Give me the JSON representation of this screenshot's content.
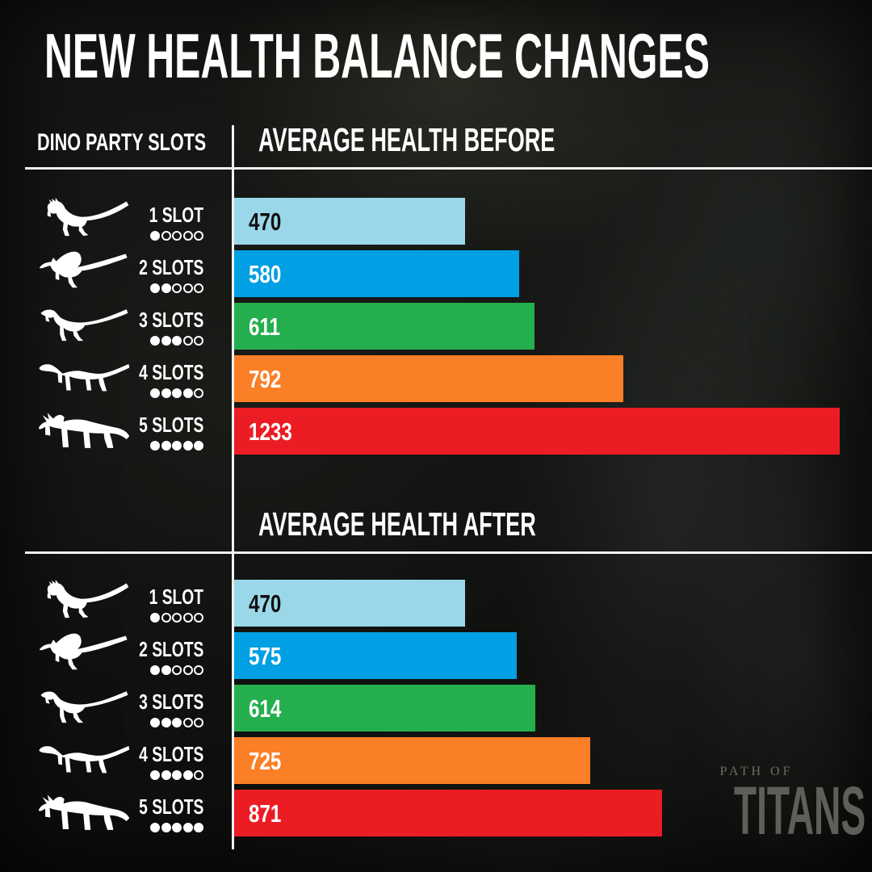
{
  "title": "NEW HEALTH BALANCE CHANGES",
  "headers": {
    "slots": "DINO PARTY SLOTS",
    "before": "AVERAGE HEALTH BEFORE",
    "after": "AVERAGE HEALTH AFTER"
  },
  "slots": [
    {
      "label": "1 SLOT",
      "filled_dots": 1,
      "total_dots": 5,
      "icon": "raptor-icon"
    },
    {
      "label": "2 SLOTS",
      "filled_dots": 2,
      "total_dots": 5,
      "icon": "concavenator-icon"
    },
    {
      "label": "3 SLOTS",
      "filled_dots": 3,
      "total_dots": 5,
      "icon": "allosaurus-icon"
    },
    {
      "label": "4 SLOTS",
      "filled_dots": 4,
      "total_dots": 5,
      "icon": "hadrosaur-icon"
    },
    {
      "label": "5 SLOTS",
      "filled_dots": 5,
      "total_dots": 5,
      "icon": "triceratops-icon"
    }
  ],
  "chart_data": [
    {
      "type": "bar",
      "orientation": "horizontal",
      "title": "AVERAGE HEALTH BEFORE",
      "categories": [
        "1 SLOT",
        "2 SLOTS",
        "3 SLOTS",
        "4 SLOTS",
        "5 SLOTS"
      ],
      "values": [
        470,
        580,
        611,
        792,
        1233
      ],
      "xlim": [
        0,
        1233
      ],
      "grid": false,
      "legend": false,
      "value_labels": "inside-start",
      "bar_colors": [
        "#9AD7E9",
        "#019FE3",
        "#25AE4E",
        "#FB7F26",
        "#EC1C24"
      ],
      "value_text_colors": [
        "#101010",
        "#FFFFFF",
        "#FFFFFF",
        "#FFFFFF",
        "#FFFFFF"
      ]
    },
    {
      "type": "bar",
      "orientation": "horizontal",
      "title": "AVERAGE HEALTH AFTER",
      "categories": [
        "1 SLOT",
        "2 SLOTS",
        "3 SLOTS",
        "4 SLOTS",
        "5 SLOTS"
      ],
      "values": [
        470,
        575,
        614,
        725,
        871
      ],
      "xlim": [
        0,
        1233
      ],
      "grid": false,
      "legend": false,
      "value_labels": "inside-start",
      "bar_colors": [
        "#9AD7E9",
        "#019FE3",
        "#25AE4E",
        "#FB7F26",
        "#EC1C24"
      ],
      "value_text_colors": [
        "#101010",
        "#FFFFFF",
        "#FFFFFF",
        "#FFFFFF",
        "#FFFFFF"
      ]
    }
  ],
  "logo": {
    "top": "PATH OF",
    "bottom": "TITANS"
  },
  "colors": {
    "background": "#141413",
    "text": "#FFFFFF",
    "divider": "#F2F2F2",
    "logo_top": "#6E6C65",
    "logo_bottom": "#5F5F5A"
  }
}
